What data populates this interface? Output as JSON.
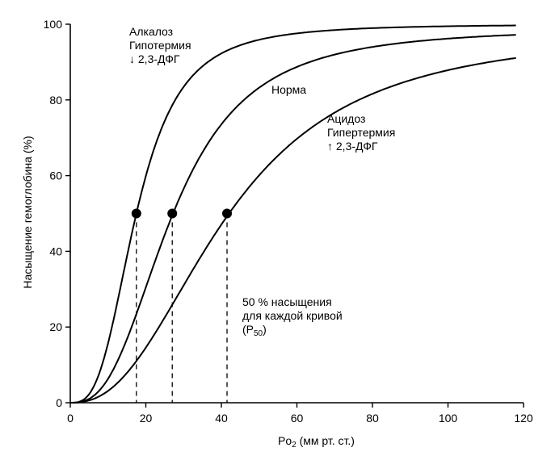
{
  "chart_data": {
    "type": "line",
    "title": "",
    "xlabel_main": "Po",
    "xlabel_sub": "2",
    "xlabel_rest": " (мм рт. ст.)",
    "ylabel": "Насыщение гемоглобина (%)",
    "xlim": [
      0,
      120
    ],
    "ylim": [
      0,
      100
    ],
    "xticks": [
      "0",
      "20",
      "40",
      "60",
      "80",
      "100",
      "120"
    ],
    "yticks": [
      "0",
      "20",
      "40",
      "60",
      "80",
      "100"
    ],
    "grid": false,
    "series": [
      {
        "name": "",
        "label_lines": [
          "Алкалоз",
          "Гипотермия",
          "↓ 2,3-ДФГ"
        ],
        "p50": 17.5,
        "hill_n": 3.0,
        "ymax": 100
      },
      {
        "name": "Норма",
        "label_lines": [
          "Норма"
        ],
        "p50": 27,
        "hill_n": 2.7,
        "ymax": 99
      },
      {
        "name": "",
        "label_lines": [
          "Ацидоз",
          "Гипертермия",
          "↑ 2,3-ДФГ"
        ],
        "p50": 41.5,
        "hill_n": 2.4,
        "ymax": 98.5
      }
    ],
    "p50_points": [
      {
        "x": 17.5,
        "y": 50
      },
      {
        "x": 27,
        "y": 50
      },
      {
        "x": 41.5,
        "y": 50
      }
    ],
    "annotation": {
      "line1": "50 % насыщения",
      "line2": "для каждой кривой",
      "line3_main": "(P",
      "line3_sub": "50",
      "line3_end": ")"
    }
  }
}
